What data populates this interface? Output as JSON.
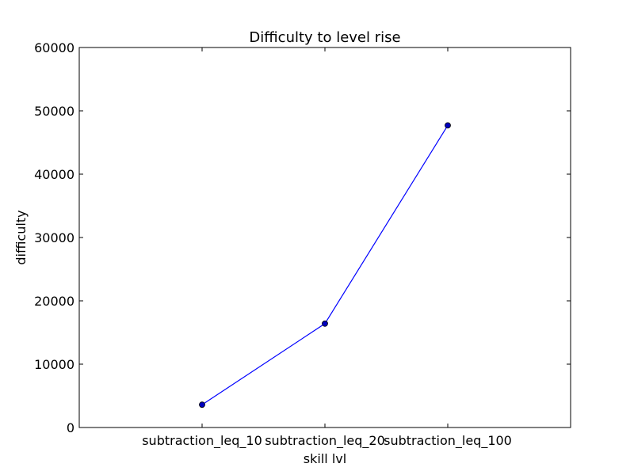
{
  "chart_data": {
    "type": "line",
    "title": "Difficulty to level rise",
    "xlabel": "skill lvl",
    "ylabel": "difficulty",
    "categories": [
      "subtraction_leq_10",
      "subtraction_leq_20",
      "subtraction_leq_100"
    ],
    "series": [
      {
        "values": [
          3600,
          16400,
          47700
        ]
      }
    ],
    "ylim": [
      0,
      60000
    ],
    "yticks": [
      0,
      10000,
      20000,
      30000,
      40000,
      50000,
      60000
    ],
    "ytick_labels": [
      "0",
      "10000",
      "20000",
      "30000",
      "40000",
      "50000",
      "60000"
    ],
    "grid": false,
    "legend": "none",
    "colors": {
      "line": "#0000ff",
      "marker_fill": "#0000bf",
      "marker_edge": "#000000",
      "axes": "#000000"
    }
  }
}
